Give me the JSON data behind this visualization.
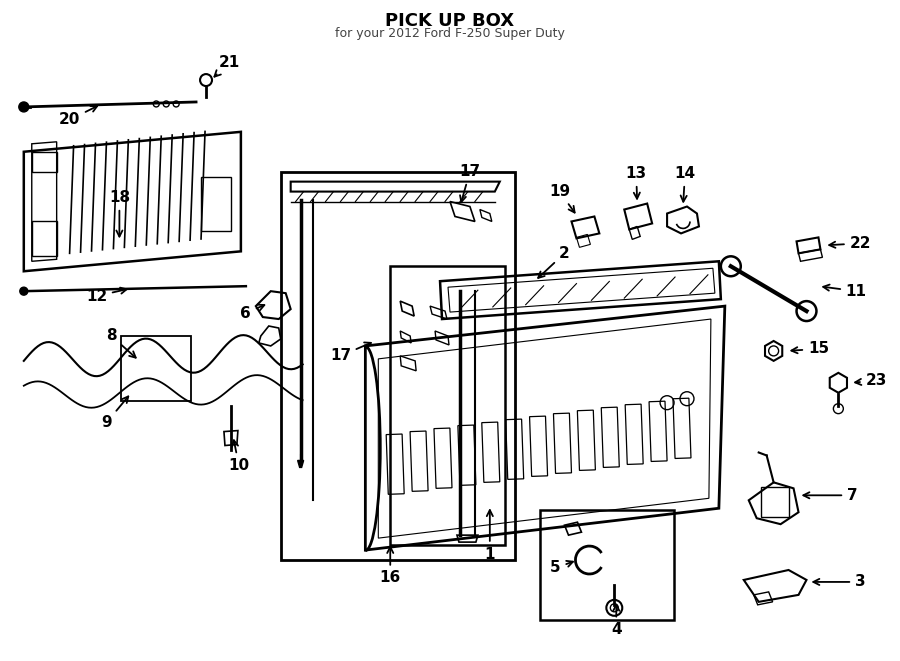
{
  "title": "PICK UP BOX",
  "subtitle": "for your 2012 Ford F-250 Super Duty",
  "bg_color": "#ffffff",
  "line_color": "#000000",
  "fig_width": 9.0,
  "fig_height": 6.61
}
